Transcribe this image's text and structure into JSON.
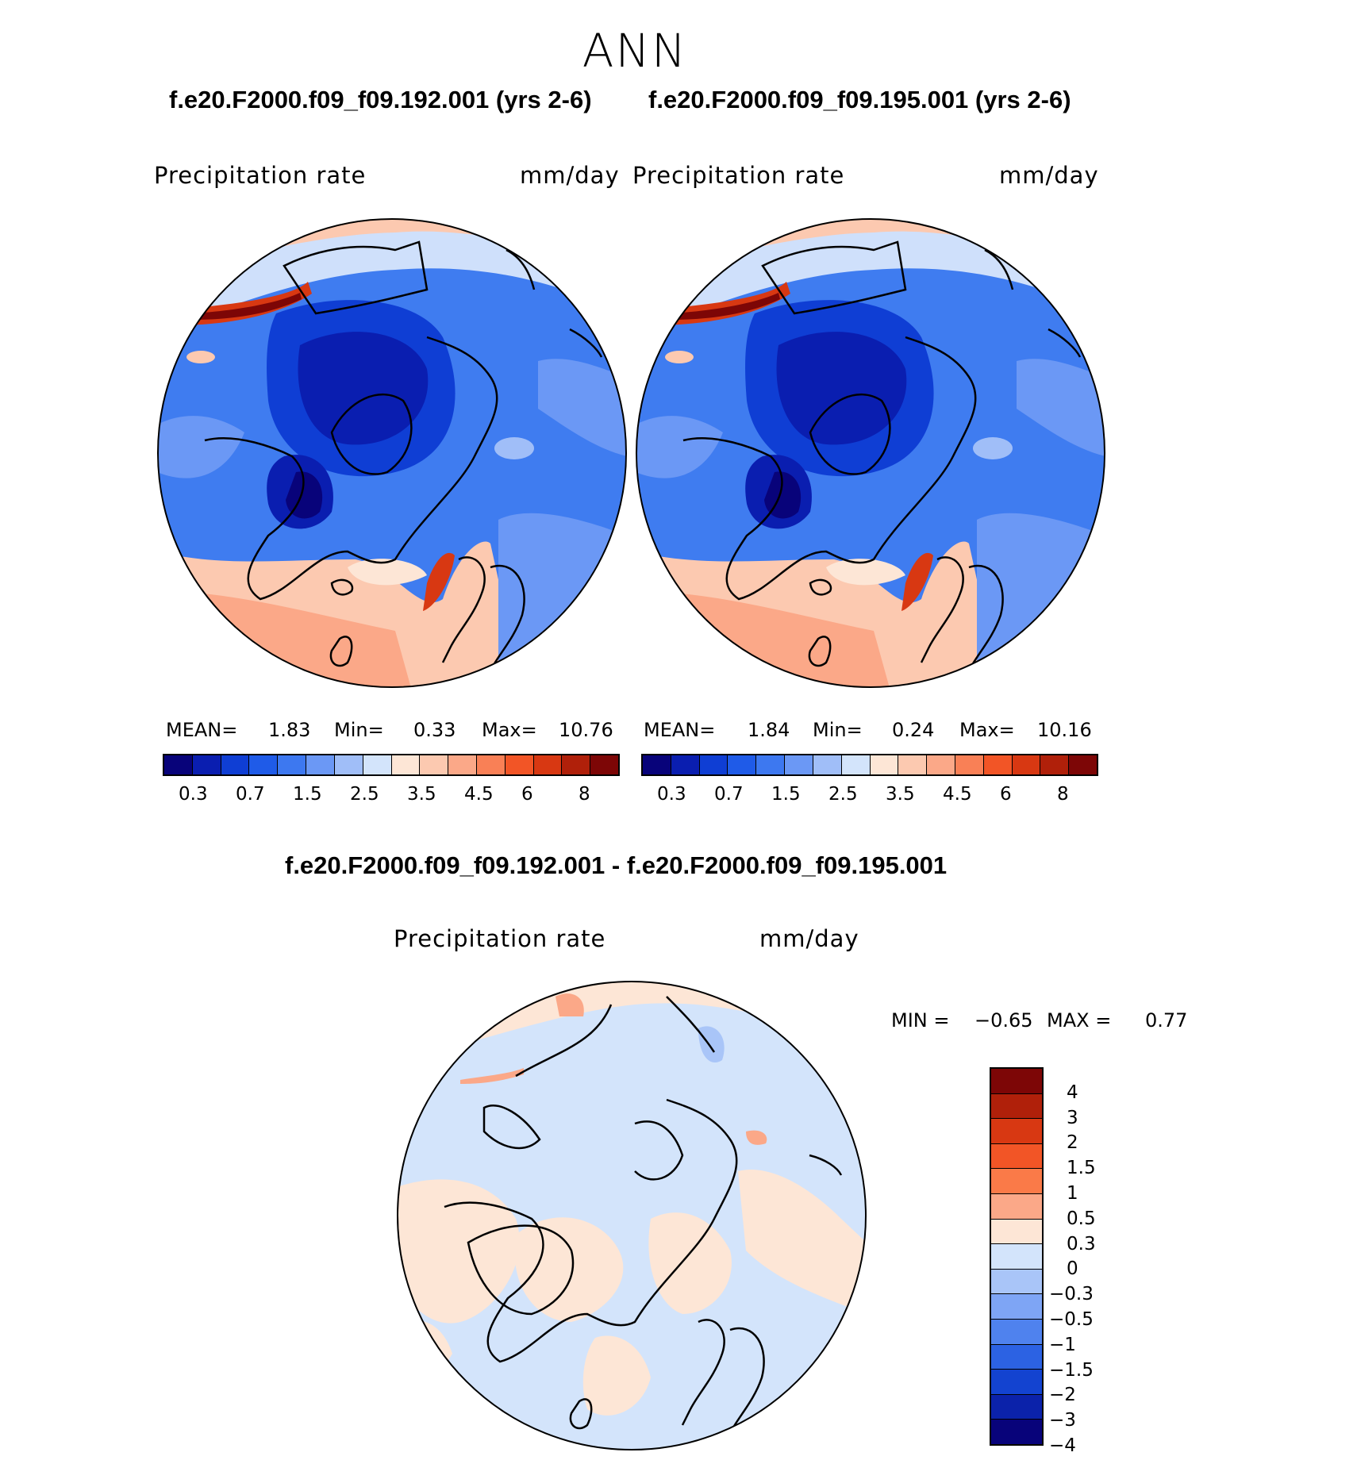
{
  "season": "ANN",
  "panels": [
    {
      "case_title": "f.e20.F2000.f09_f09.192.001 (yrs 2-6)",
      "variable": "Precipitation rate",
      "units": "mm/day",
      "mean_label": "MEAN=",
      "mean": "1.83",
      "min_label": "Min=",
      "min": "0.33",
      "max_label": "Max=",
      "max": "10.76"
    },
    {
      "case_title": "f.e20.F2000.f09_f09.195.001 (yrs 2-6)",
      "variable": "Precipitation rate",
      "units": "mm/day",
      "mean_label": "MEAN=",
      "mean": "1.84",
      "min_label": "Min=",
      "min": "0.24",
      "max_label": "Max=",
      "max": "10.16"
    }
  ],
  "colorbar": {
    "ticks": [
      "0.3",
      "0.7",
      "1.5",
      "2.5",
      "3.5",
      "4.5",
      "6",
      "8"
    ],
    "colors": [
      "#08037a",
      "#0a1eb0",
      "#0f3ed4",
      "#1f5be8",
      "#3d78f0",
      "#6b98f5",
      "#a0bef8",
      "#d3e4fb",
      "#fde6d6",
      "#fcc9b0",
      "#fba888",
      "#f98056",
      "#f25526",
      "#d83812",
      "#b0200a",
      "#7d0606"
    ]
  },
  "diff": {
    "title": "f.e20.F2000.f09_f09.192.001 - f.e20.F2000.f09_f09.195.001",
    "variable": "Precipitation rate",
    "units": "mm/day",
    "min_label": "MIN =",
    "min": "−0.65",
    "max_label": "MAX =",
    "max": "0.77",
    "ticks": [
      "4",
      "3",
      "2",
      "1.5",
      "1",
      "0.5",
      "0.3",
      "0",
      "−0.3",
      "−0.5",
      "−1",
      "−1.5",
      "−2",
      "−3",
      "−4"
    ],
    "colors": [
      "#7d0606",
      "#b0200a",
      "#d83812",
      "#f25526",
      "#fa7a48",
      "#fba888",
      "#fde6d6",
      "#d3e4fb",
      "#a9c5f8",
      "#7ea5f5",
      "#4f82ee",
      "#2c62e3",
      "#1343d0",
      "#0b22aa",
      "#08037a"
    ]
  }
}
